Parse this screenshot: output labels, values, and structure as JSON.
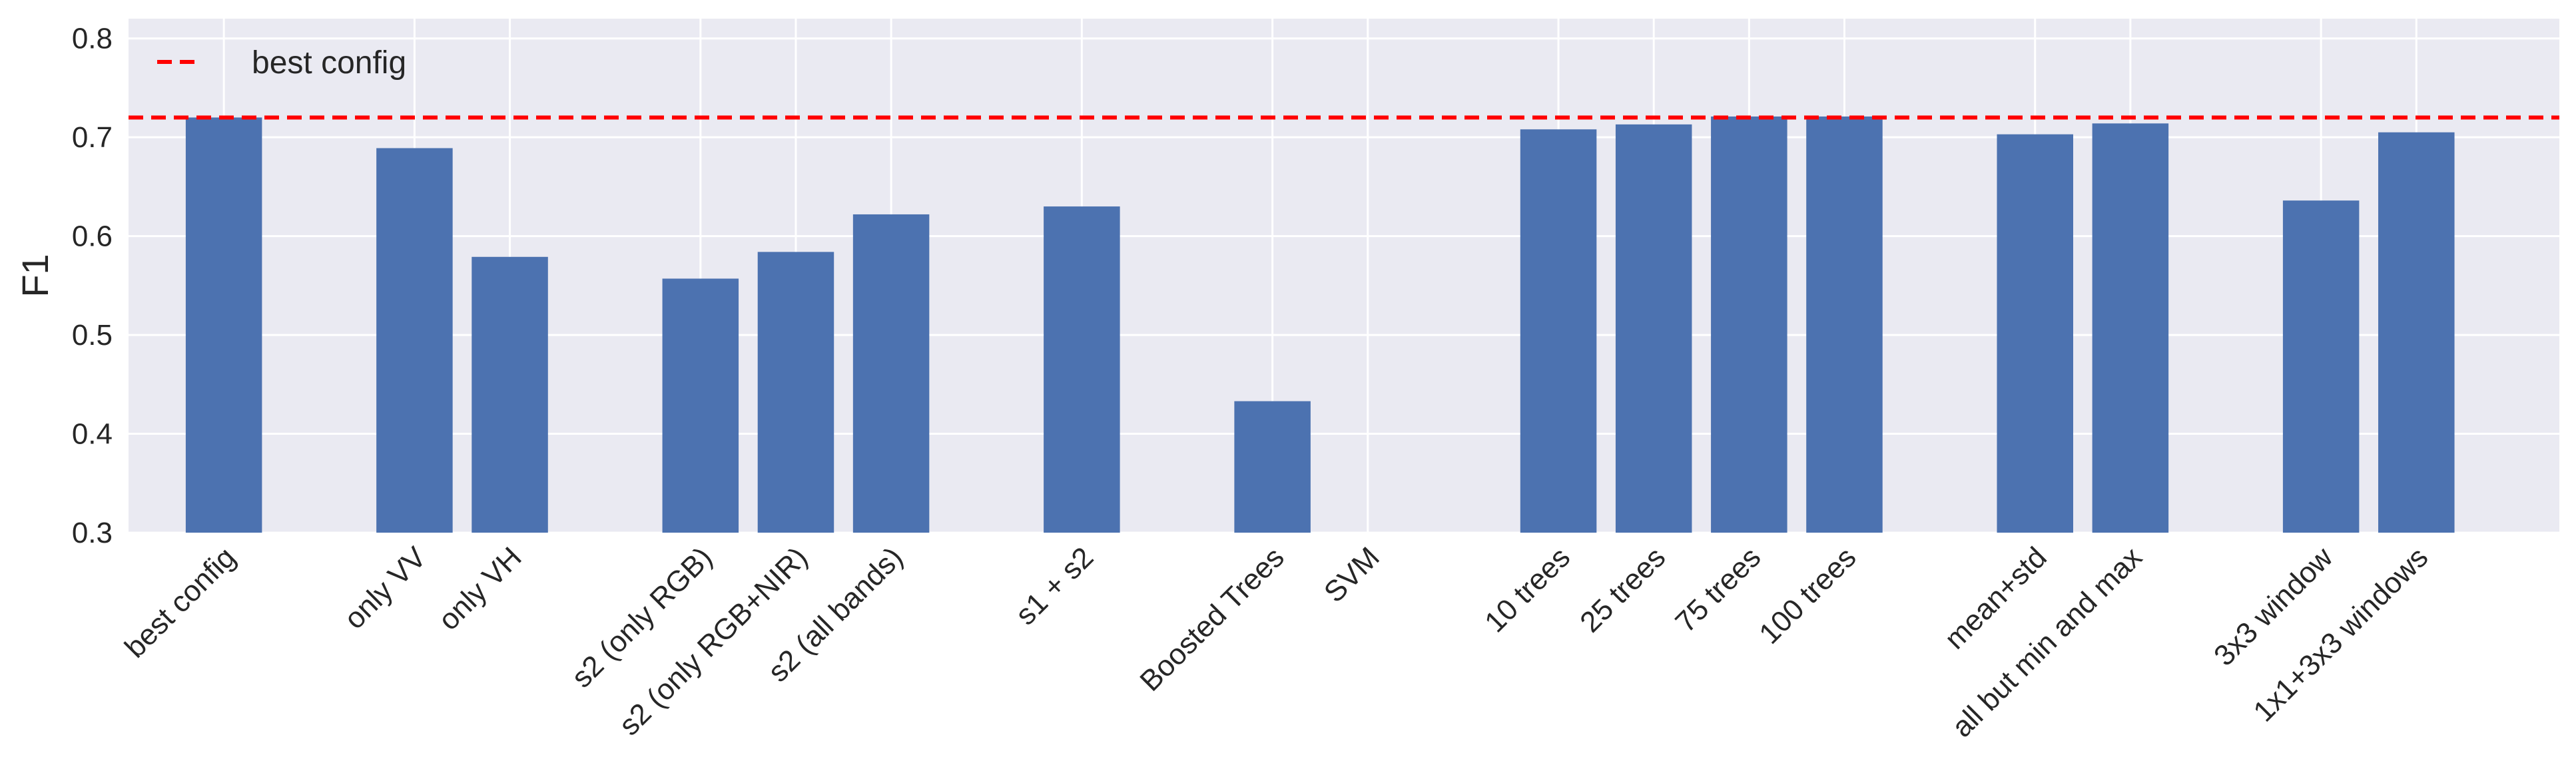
{
  "chart_data": {
    "type": "bar",
    "title": "",
    "xlabel": "",
    "ylabel": "F1",
    "ylim": [
      0.3,
      0.82
    ],
    "yticks": [
      0.3,
      0.4,
      0.5,
      0.6,
      0.7,
      0.8
    ],
    "ytick_labels": [
      "0.3",
      "0.4",
      "0.5",
      "0.6",
      "0.7",
      "0.8"
    ],
    "xlim": [
      -1.0,
      24.5
    ],
    "grid": true,
    "legend": {
      "placement": "top-left",
      "entries": [
        {
          "label": "best config",
          "color": "#ff0000",
          "style": "dashed"
        }
      ]
    },
    "reference_line": {
      "label": "best config",
      "value": 0.72,
      "color": "#ff0000"
    },
    "colors": {
      "bar": "#4c72b0",
      "background": "#eaeaf2",
      "grid": "#ffffff",
      "text": "#262626",
      "reference": "#ff0000"
    },
    "bars": [
      {
        "label": "best config",
        "x": 0,
        "value": 0.72
      },
      {
        "label": "only VV",
        "x": 2,
        "value": 0.689
      },
      {
        "label": "only VH",
        "x": 3,
        "value": 0.579
      },
      {
        "label": "s2 (only RGB)",
        "x": 5,
        "value": 0.557
      },
      {
        "label": "s2 (only RGB+NIR)",
        "x": 6,
        "value": 0.584
      },
      {
        "label": "s2 (all bands)",
        "x": 7,
        "value": 0.622
      },
      {
        "label": "s1 + s2",
        "x": 9,
        "value": 0.63
      },
      {
        "label": "Boosted Trees",
        "x": 11,
        "value": 0.433
      },
      {
        "label": "SVM",
        "x": 12,
        "value": null
      },
      {
        "label": "10 trees",
        "x": 14,
        "value": 0.708
      },
      {
        "label": "25 trees",
        "x": 15,
        "value": 0.713
      },
      {
        "label": "75 trees",
        "x": 16,
        "value": 0.721
      },
      {
        "label": "100 trees",
        "x": 17,
        "value": 0.721
      },
      {
        "label": "mean+std",
        "x": 19,
        "value": 0.703
      },
      {
        "label": "all but min and max",
        "x": 20,
        "value": 0.714
      },
      {
        "label": "3x3 window",
        "x": 22,
        "value": 0.636
      },
      {
        "label": "1x1+3x3 windows",
        "x": 23,
        "value": 0.705
      }
    ]
  }
}
